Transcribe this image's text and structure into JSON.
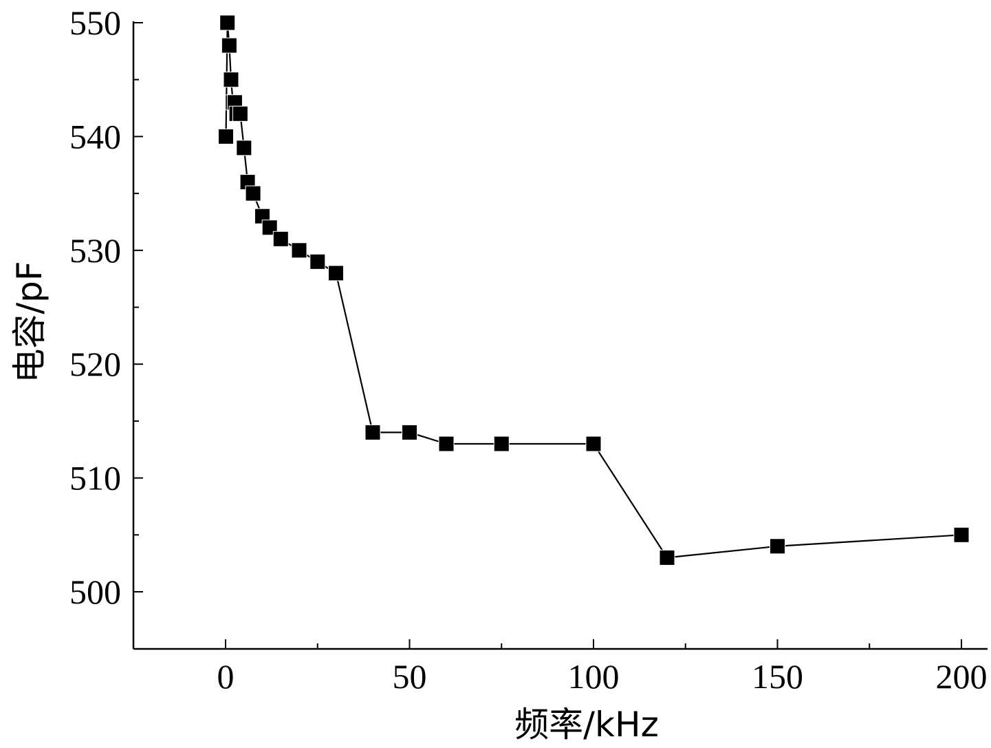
{
  "chart_data": {
    "type": "line",
    "title": "",
    "xlabel": "频率/kHz",
    "ylabel": "电容/pF",
    "xlim": [
      -25,
      200
    ],
    "ylim": [
      495,
      550
    ],
    "x_ticks": [
      0,
      50,
      100,
      150,
      200
    ],
    "x_tick_labels": [
      "0",
      "50",
      "100",
      "150",
      "200"
    ],
    "x_minor_ticks": [
      25,
      75,
      125,
      175
    ],
    "y_ticks": [
      500,
      510,
      520,
      530,
      540,
      550
    ],
    "y_tick_labels": [
      "500",
      "510",
      "520",
      "530",
      "540",
      "550"
    ],
    "y_minor_ticks": [
      505,
      515,
      525,
      535,
      545
    ],
    "grid": false,
    "marker": "square",
    "colors": {
      "line": "#000000",
      "marker": "#000000",
      "axis": "#000000"
    },
    "series": [
      {
        "x": [
          0.1,
          0.5,
          1,
          1.5,
          2,
          2.5,
          3,
          4,
          5,
          6,
          7.5,
          10,
          12,
          15,
          20,
          25,
          30,
          40,
          50,
          60,
          75,
          100,
          120,
          150,
          200
        ],
        "y": [
          540,
          550,
          548,
          545,
          543,
          543,
          542,
          542,
          539,
          536,
          535,
          533,
          532,
          531,
          530,
          529,
          528,
          514,
          514,
          513,
          513,
          513,
          503,
          504,
          505
        ]
      }
    ]
  }
}
